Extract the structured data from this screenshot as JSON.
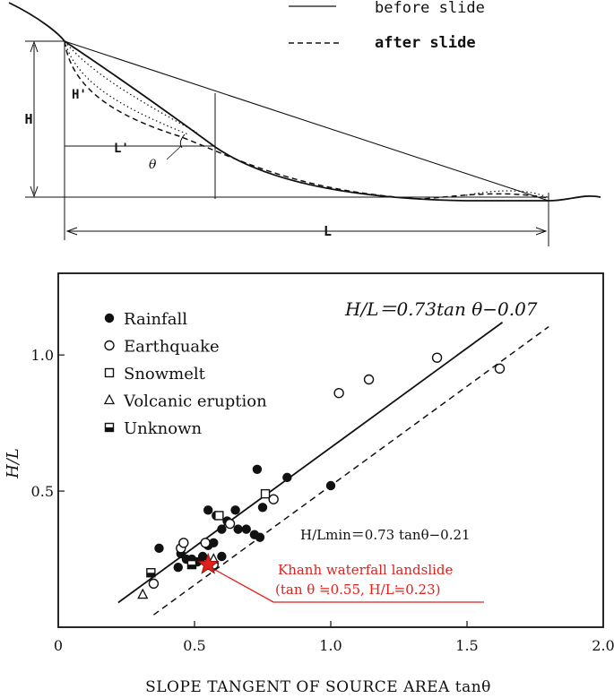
{
  "diagram": {
    "legend_before": "before slide",
    "legend_after": "after slide",
    "label_H": "H",
    "label_H_prime": "H'",
    "label_L": "L",
    "label_L_prime": "L'",
    "label_theta": "θ"
  },
  "chart_data": {
    "type": "scatter",
    "xlabel": "SLOPE TANGENT OF SOURCE AREA tanθ",
    "ylabel": "H/L",
    "xlim": [
      0,
      2.0
    ],
    "ylim": [
      0,
      1.3
    ],
    "x_ticks": [
      {
        "value": 0,
        "label": "0"
      },
      {
        "value": 0.5,
        "label": "0.5"
      },
      {
        "value": 1.0,
        "label": "1.0"
      },
      {
        "value": 1.5,
        "label": "1.5"
      },
      {
        "value": 2.0,
        "label": "2.0"
      }
    ],
    "y_ticks": [
      {
        "value": 0.5,
        "label": "0.5"
      },
      {
        "value": 1.0,
        "label": "1.0"
      }
    ],
    "grid": false,
    "legend_position": "top-left",
    "series": [
      {
        "name": "Rainfall",
        "marker": "filled-circle",
        "points": [
          [
            0.37,
            0.29
          ],
          [
            0.44,
            0.22
          ],
          [
            0.45,
            0.27
          ],
          [
            0.47,
            0.25
          ],
          [
            0.49,
            0.25
          ],
          [
            0.51,
            0.24
          ],
          [
            0.53,
            0.26
          ],
          [
            0.55,
            0.3
          ],
          [
            0.55,
            0.43
          ],
          [
            0.57,
            0.31
          ],
          [
            0.58,
            0.41
          ],
          [
            0.6,
            0.26
          ],
          [
            0.6,
            0.36
          ],
          [
            0.62,
            0.39
          ],
          [
            0.65,
            0.43
          ],
          [
            0.66,
            0.36
          ],
          [
            0.69,
            0.36
          ],
          [
            0.72,
            0.34
          ],
          [
            0.73,
            0.58
          ],
          [
            0.74,
            0.33
          ],
          [
            0.75,
            0.44
          ],
          [
            0.84,
            0.55
          ],
          [
            1.0,
            0.52
          ]
        ]
      },
      {
        "name": "Earthquake",
        "marker": "open-circle",
        "points": [
          [
            0.35,
            0.16
          ],
          [
            0.45,
            0.29
          ],
          [
            0.46,
            0.31
          ],
          [
            0.54,
            0.31
          ],
          [
            0.57,
            0.23
          ],
          [
            0.63,
            0.38
          ],
          [
            0.79,
            0.47
          ],
          [
            1.03,
            0.86
          ],
          [
            1.14,
            0.91
          ],
          [
            1.39,
            0.99
          ],
          [
            1.62,
            0.95
          ]
        ]
      },
      {
        "name": "Snowmelt",
        "marker": "open-square",
        "points": [
          [
            0.59,
            0.41
          ],
          [
            0.76,
            0.49
          ]
        ]
      },
      {
        "name": "Volcanic eruption",
        "marker": "open-triangle",
        "points": [
          [
            0.31,
            0.12
          ],
          [
            0.57,
            0.25
          ]
        ]
      },
      {
        "name": "Unknown",
        "marker": "half-square",
        "points": [
          [
            0.34,
            0.2
          ],
          [
            0.49,
            0.23
          ]
        ]
      }
    ],
    "lines": [
      {
        "label": "H/L＝0.73tan θ−0.07",
        "style": "solid",
        "slope": 0.73,
        "intercept": -0.07,
        "x_range": [
          0.22,
          1.63
        ]
      },
      {
        "label": "H/Lmin＝0.73 tanθ−0.21",
        "style": "dashed",
        "slope": 0.73,
        "intercept": -0.21,
        "x_range": [
          0.35,
          1.8
        ]
      }
    ],
    "highlight": {
      "x": 0.55,
      "y": 0.23,
      "color": "#e0201b",
      "label_line1": "Khanh waterfall landslide",
      "label_line2": "(tan θ ≒0.55, H/L≒0.23)"
    }
  }
}
